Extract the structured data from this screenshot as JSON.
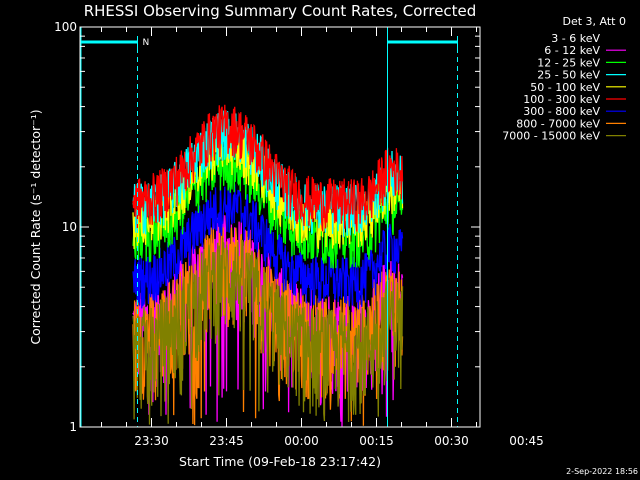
{
  "chart_data": {
    "type": "line",
    "title": "RHESSI Observing Summary Count Rates, Corrected",
    "xlabel": "Start Time (09-Feb-18 23:17:42)",
    "ylabel": "Corrected Count Rate (s⁻¹ detector⁻¹)",
    "yscale": "log",
    "ylim": [
      1,
      100
    ],
    "y_ticks": [
      {
        "value": 1,
        "label": "1"
      },
      {
        "value": 10,
        "label": "10"
      },
      {
        "value": 100,
        "label": "100"
      }
    ],
    "xlim_minutes": [
      0,
      80
    ],
    "x_ticks": [
      {
        "minute": 14.3,
        "label": "23:30"
      },
      {
        "minute": 29.3,
        "label": "23:45"
      },
      {
        "minute": 44.3,
        "label": "00:00"
      },
      {
        "minute": 59.3,
        "label": "00:15"
      },
      {
        "minute": 74.3,
        "label": "00:30"
      },
      {
        "minute": 89.3,
        "label": "00:45"
      }
    ],
    "legend_header": "Det 3, Att 0",
    "legend_position": "right-outside",
    "night_marker": "N",
    "timestamp": "2-Sep-2022 18:56",
    "series": [
      {
        "name": "3 - 6 keV",
        "color": "#000000",
        "peak": 0
      },
      {
        "name": "6 - 12 keV",
        "color": "#ff00ff",
        "peak": 7.5
      },
      {
        "name": "12 - 25 keV",
        "color": "#00ff00",
        "peak": 21
      },
      {
        "name": "25 - 50 keV",
        "color": "#00ffff",
        "peak": 30
      },
      {
        "name": "50 - 100 keV",
        "color": "#ffff00",
        "peak": 26
      },
      {
        "name": "100 - 300 keV",
        "color": "#ff0000",
        "peak": 32
      },
      {
        "name": "300 - 800 keV",
        "color": "#0000ff",
        "peak": 13
      },
      {
        "name": "800 - 7000 keV",
        "color": "#ff8000",
        "peak": 7
      },
      {
        "name": "7000 - 15000 keV",
        "color": "#808000",
        "peak": 6
      }
    ]
  }
}
